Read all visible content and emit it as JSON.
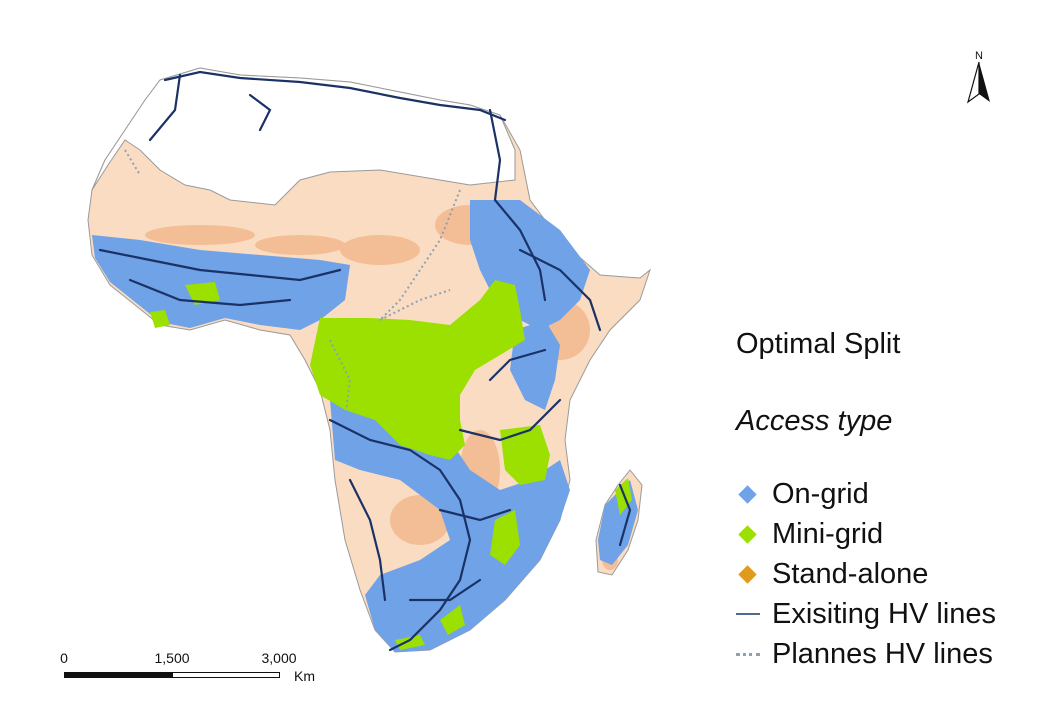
{
  "legend": {
    "title": "Optimal Split",
    "subtitle": "Access type",
    "items": [
      {
        "label": "On-grid",
        "symbol": "diamond",
        "color": "#6fa2e6"
      },
      {
        "label": "Mini-grid",
        "symbol": "diamond",
        "color": "#9be000"
      },
      {
        "label": "Stand-alone",
        "symbol": "diamond",
        "color": "#e09a1c"
      },
      {
        "label": "Exisiting HV lines",
        "symbol": "solid-line",
        "color": "#1b3266"
      },
      {
        "label": "Plannes HV lines",
        "symbol": "dotted-line",
        "color": "#8fa0b3"
      }
    ]
  },
  "scalebar": {
    "ticks": [
      "0",
      "1,500",
      "3,000"
    ],
    "units": "Km"
  },
  "north_arrow": {
    "label": "N"
  },
  "colors": {
    "land_background": "#f9dcc2",
    "unclassified_north": "#ffffff",
    "border": "#9a9a9a",
    "stand_alone_patches": "#f2b98e"
  }
}
